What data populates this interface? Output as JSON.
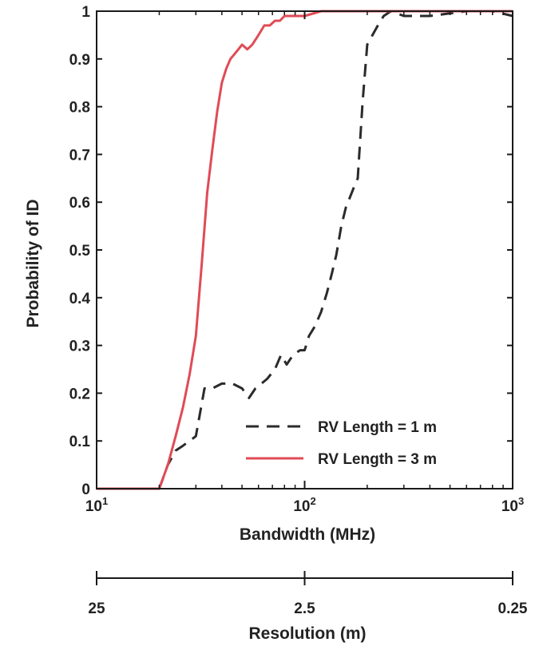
{
  "chart_data": {
    "type": "line",
    "xlabel": "Bandwidth (MHz)",
    "ylabel": "Probability of ID",
    "xscale": "log",
    "xlim": [
      10,
      1000
    ],
    "ylim": [
      0,
      1
    ],
    "xticks": [
      {
        "value": 10,
        "base": "10",
        "exp": "1"
      },
      {
        "value": 100,
        "base": "10",
        "exp": "2"
      },
      {
        "value": 1000,
        "base": "10",
        "exp": "3"
      }
    ],
    "yticks": [
      {
        "value": 0,
        "label": "0"
      },
      {
        "value": 0.1,
        "label": "0.1"
      },
      {
        "value": 0.2,
        "label": "0.2"
      },
      {
        "value": 0.3,
        "label": "0.3"
      },
      {
        "value": 0.4,
        "label": "0.4"
      },
      {
        "value": 0.5,
        "label": "0.5"
      },
      {
        "value": 0.6,
        "label": "0.6"
      },
      {
        "value": 0.7,
        "label": "0.7"
      },
      {
        "value": 0.8,
        "label": "0.8"
      },
      {
        "value": 0.9,
        "label": "0.9"
      },
      {
        "value": 1,
        "label": "1"
      }
    ],
    "grid": false,
    "legend_position": "bottom-right",
    "series": [
      {
        "name": "RV Length = 1 m",
        "color": "#2b2b2b",
        "style": "dashed",
        "x": [
          10,
          15,
          20,
          22,
          24,
          26,
          28,
          30,
          33,
          36,
          40,
          45,
          50,
          54,
          58,
          62,
          66,
          72,
          77,
          82,
          88,
          95,
          100,
          105,
          112,
          120,
          128,
          135,
          142,
          150,
          158,
          165,
          172,
          180,
          190,
          200,
          212,
          225,
          240,
          260,
          300,
          400,
          600,
          800,
          1000
        ],
        "y": [
          0,
          0,
          0,
          0.05,
          0.08,
          0.09,
          0.1,
          0.11,
          0.21,
          0.21,
          0.22,
          0.22,
          0.21,
          0.19,
          0.21,
          0.22,
          0.23,
          0.25,
          0.28,
          0.26,
          0.28,
          0.29,
          0.29,
          0.32,
          0.34,
          0.37,
          0.41,
          0.45,
          0.49,
          0.55,
          0.59,
          0.61,
          0.63,
          0.65,
          0.81,
          0.93,
          0.95,
          0.97,
          0.99,
          1,
          0.99,
          0.99,
          1,
          1,
          0.99
        ]
      },
      {
        "name": "RV Length = 3 m",
        "color": "#e04b55",
        "style": "solid",
        "x": [
          10,
          15,
          20,
          22,
          24,
          26,
          28,
          30,
          32,
          34,
          36,
          38,
          40,
          42,
          44,
          46,
          48,
          50,
          53,
          56,
          60,
          64,
          68,
          72,
          76,
          80,
          85,
          90,
          100,
          120,
          150,
          200,
          300,
          500,
          1000
        ],
        "y": [
          0,
          0,
          0,
          0.05,
          0.11,
          0.17,
          0.24,
          0.32,
          0.47,
          0.62,
          0.71,
          0.79,
          0.85,
          0.88,
          0.9,
          0.91,
          0.92,
          0.93,
          0.92,
          0.93,
          0.95,
          0.97,
          0.97,
          0.98,
          0.98,
          0.99,
          0.99,
          0.99,
          0.99,
          1,
          1,
          1,
          1,
          1,
          1
        ]
      }
    ]
  },
  "resolution_axis": {
    "label": "Resolution (m)",
    "ticks": [
      {
        "label": "25",
        "bandwidth": 10
      },
      {
        "label": "2.5",
        "bandwidth": 100
      },
      {
        "label": "0.25",
        "bandwidth": 1000
      }
    ]
  }
}
